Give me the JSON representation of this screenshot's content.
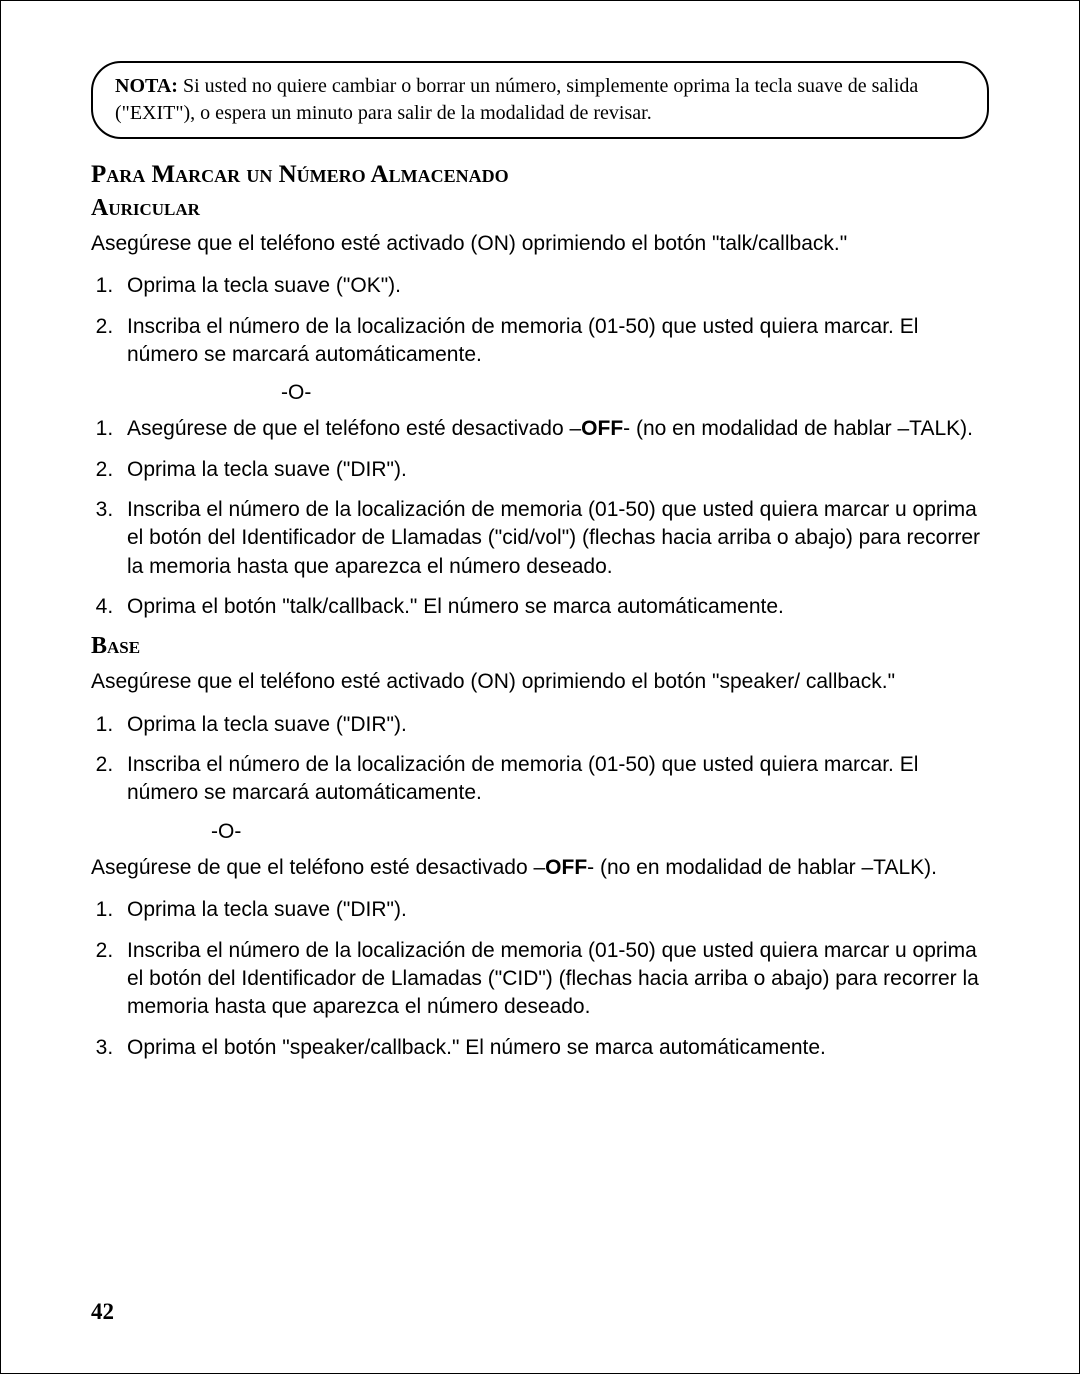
{
  "note": {
    "label": "NOTA:",
    "text": " Si usted no quiere cambiar o borrar un número, simplemente oprima la tecla suave de salida (\"EXIT\"), o espera un minuto para salir de la modalidad de revisar."
  },
  "heading_main": "Para Marcar un Número Almacenado",
  "auricular": {
    "heading": "Auricular",
    "intro": "Asegúrese que el teléfono esté activado (ON) oprimiendo el botón \"talk/callback.\"",
    "listA": [
      "Oprima la tecla suave (\"OK\").",
      "Inscriba el número de la localización de memoria (01-50) que usted quiera marcar. El número se marcará automáticamente."
    ],
    "or": "-O-",
    "listB_lead_pre": "Asegúrese de que el teléfono esté desactivado –",
    "listB_lead_bold": "OFF",
    "listB_lead_post": "- (no en modalidad de hablar –TALK).",
    "listB": [
      "Oprima la tecla suave (\"DIR\").",
      "Inscriba el número de la localización de memoria (01-50) que usted quiera marcar u oprima el botón del Identificador de Llamadas (\"cid/vol\") (flechas hacia arriba o abajo) para recorrer la memoria hasta que aparezca el número deseado.",
      "Oprima el botón \"talk/callback.\" El número se marca automáticamente."
    ]
  },
  "base": {
    "heading": "Base",
    "intro": "Asegúrese que el teléfono esté activado (ON) oprimiendo el botón \"speaker/ callback.\"",
    "listA": [
      "Oprima la tecla suave (\"DIR\").",
      "Inscriba el número de la localización de memoria (01-50) que usted quiera marcar. El número se marcará automáticamente."
    ],
    "or": "-O-",
    "para2_pre": "Asegúrese de que el teléfono esté desactivado –",
    "para2_bold": "OFF",
    "para2_post": "- (no en modalidad de hablar –TALK).",
    "listB": [
      "Oprima la tecla suave (\"DIR\").",
      "Inscriba el número de la localización de memoria (01-50) que usted quiera marcar u oprima el botón del Identificador de Llamadas (\"CID\") (flechas hacia arriba o abajo) para recorrer la memoria hasta que aparezca el número deseado.",
      "Oprima el botón \"speaker/callback.\" El número se marca automáticamente."
    ]
  },
  "page_number": "42"
}
